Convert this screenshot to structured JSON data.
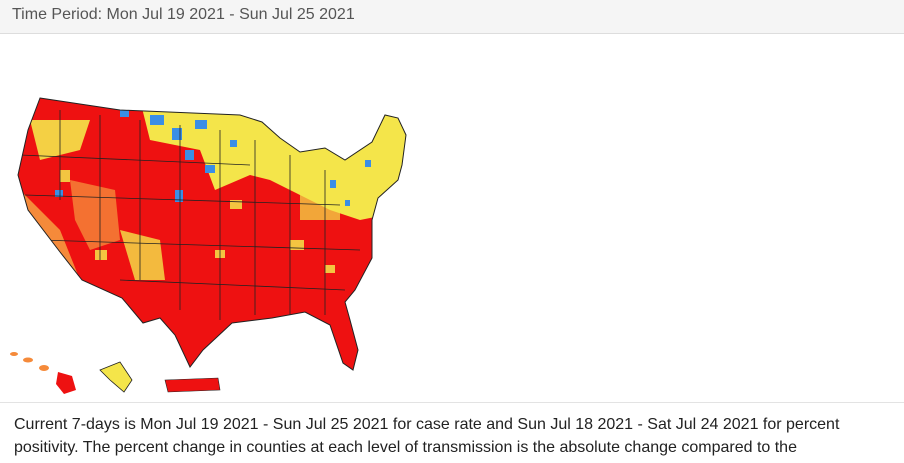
{
  "header": {
    "title": "Time Period: Mon Jul 19 2021 - Sun Jul 25 2021"
  },
  "description": {
    "lines": [
      "Current 7-days is Mon Jul 19 2021 - Sun Jul 25 2021 for case rate and Sun Jul 18 2021 - Sat Jul 24 2021 for percent",
      "positivity. The percent change in counties at each level of transmission is the absolute change compared to the"
    ]
  }
}
